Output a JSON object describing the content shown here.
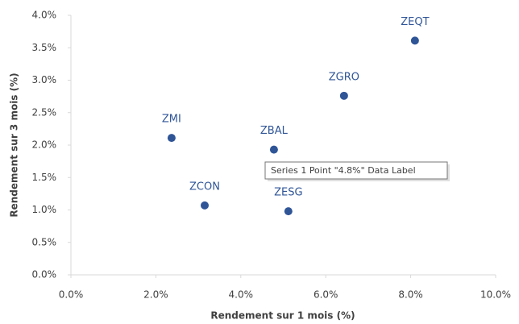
{
  "chart_data": {
    "type": "scatter",
    "xlabel": "Rendement sur 1 mois (%)",
    "ylabel": "Rendement sur 3 mois (%)",
    "x": [
      2.37,
      3.15,
      4.78,
      5.12,
      6.43,
      8.1
    ],
    "values": [
      2.11,
      1.07,
      1.93,
      0.98,
      2.76,
      3.61
    ],
    "labels": [
      "ZMI",
      "ZCON",
      "ZBAL",
      "ZESG",
      "ZGRO",
      "ZEQT"
    ],
    "color": "#2f5597",
    "xlim": [
      0,
      10
    ],
    "xticks": [
      {
        "value": 0,
        "label": "0.0%"
      },
      {
        "value": 2,
        "label": "2.0%"
      },
      {
        "value": 4,
        "label": "4.0%"
      },
      {
        "value": 6,
        "label": "6.0%"
      },
      {
        "value": 8,
        "label": "8.0%"
      },
      {
        "value": 10,
        "label": "10.0%"
      }
    ],
    "ylim": [
      0,
      4
    ],
    "yticks": [
      {
        "value": 0,
        "label": "0.0%"
      },
      {
        "value": 0.5,
        "label": "0.5%"
      },
      {
        "value": 1,
        "label": "1.0%"
      },
      {
        "value": 1.5,
        "label": "1.5%"
      },
      {
        "value": 2,
        "label": "2.0%"
      },
      {
        "value": 2.5,
        "label": "2.5%"
      },
      {
        "value": 3,
        "label": "3.0%"
      },
      {
        "value": 3.5,
        "label": "3.5%"
      },
      {
        "value": 4,
        "label": "4.0%"
      }
    ],
    "tooltip": "Series 1 Point \"4.8%\" Data Label"
  }
}
